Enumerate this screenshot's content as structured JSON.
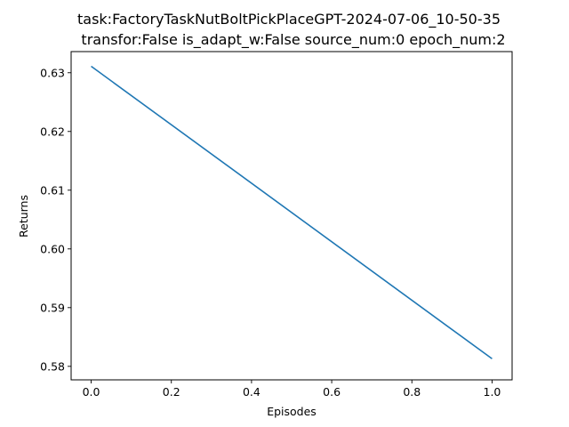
{
  "chart_data": {
    "type": "line",
    "title_lines": [
      "task:FactoryTaskNutBoltPickPlaceGPT-2024-07-06_10-50-35",
      "transfor:False  is_adapt_w:False   source_num:0   epoch_num:2"
    ],
    "xlabel": "Episodes",
    "ylabel": "Returns",
    "xlim": [
      -0.05,
      1.05
    ],
    "ylim": [
      0.5777,
      0.6336
    ],
    "x_ticks": [
      0.0,
      0.2,
      0.4,
      0.6,
      0.8,
      1.0
    ],
    "x_tick_labels": [
      "0.0",
      "0.2",
      "0.4",
      "0.6",
      "0.8",
      "1.0"
    ],
    "y_ticks": [
      0.58,
      0.59,
      0.6,
      0.61,
      0.62,
      0.63
    ],
    "y_tick_labels": [
      "0.58",
      "0.59",
      "0.60",
      "0.61",
      "0.62",
      "0.63"
    ],
    "grid": false,
    "series": [
      {
        "color": "#1f77b4",
        "x": [
          0.0,
          1.0
        ],
        "y": [
          0.6311,
          0.5813
        ]
      }
    ]
  }
}
